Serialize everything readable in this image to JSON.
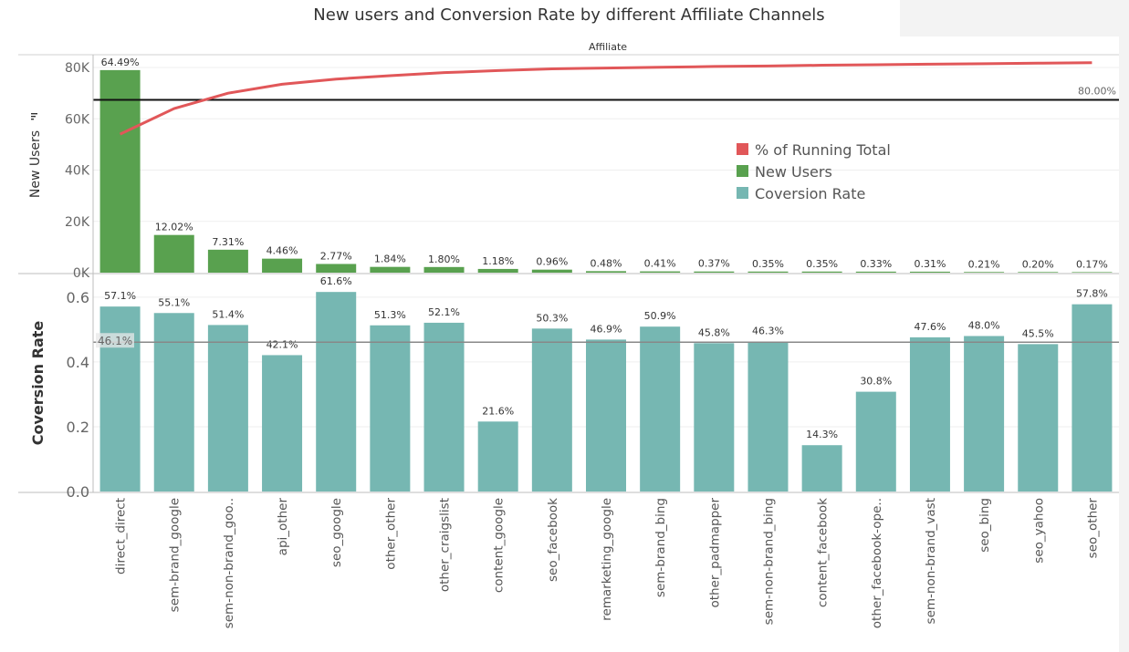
{
  "title": "New users and Conversion Rate by different Affiliate Channels",
  "header": "Affiliate",
  "colors": {
    "running_total": "#e15759",
    "new_users": "#59a14f",
    "conversion": "#76b7b2"
  },
  "chart_data": [
    {
      "type": "bar",
      "ylabel": "New Users",
      "ylim": [
        0,
        85000
      ],
      "yticks": [
        "0K",
        "20K",
        "40K",
        "60K",
        "80K"
      ],
      "ytick_values": [
        0,
        20000,
        40000,
        60000,
        80000
      ],
      "categories": [
        "direct_direct",
        "sem-brand_google",
        "sem-non-brand_goo..",
        "api_other",
        "seo_google",
        "other_other",
        "other_craigslist",
        "content_google",
        "seo_facebook",
        "remarketing_google",
        "sem-brand_bing",
        "other_padmapper",
        "sem-non-brand_bing",
        "content_facebook",
        "other_facebook-ope..",
        "sem-non-brand_vast",
        "seo_bing",
        "seo_yahoo",
        "seo_other"
      ],
      "series": [
        {
          "name": "New Users",
          "values": [
            79000,
            14700,
            8950,
            5460,
            3390,
            2250,
            2200,
            1450,
            1180,
            590,
            500,
            450,
            430,
            430,
            400,
            380,
            260,
            240,
            210
          ]
        },
        {
          "name": "% of Running Total",
          "values": [
            54000,
            64000,
            70000,
            73500,
            75500,
            76800,
            78000,
            78800,
            79500,
            79800,
            80100,
            80400,
            80600,
            80900,
            81100,
            81300,
            81500,
            81700,
            81900
          ]
        }
      ],
      "data_labels": [
        "64.49%",
        "12.02%",
        "7.31%",
        "4.46%",
        "2.77%",
        "1.84%",
        "1.80%",
        "1.18%",
        "0.96%",
        "0.48%",
        "0.41%",
        "0.37%",
        "0.35%",
        "0.35%",
        "0.33%",
        "0.31%",
        "0.21%",
        "0.20%",
        "0.17%"
      ],
      "reference_line": {
        "label": "80.00%",
        "value": 67400
      },
      "legend": [
        "% of Running Total",
        "New Users",
        "Coversion Rate"
      ],
      "legend_position": "right"
    },
    {
      "type": "bar",
      "ylabel": "Coversion Rate",
      "ylim": [
        0,
        0.67
      ],
      "yticks": [
        "0.0",
        "0.2",
        "0.4",
        "0.6"
      ],
      "ytick_values": [
        0,
        0.2,
        0.4,
        0.6
      ],
      "series": [
        {
          "name": "Coversion Rate",
          "values": [
            0.571,
            0.551,
            0.514,
            0.421,
            0.616,
            0.513,
            0.521,
            0.216,
            0.503,
            0.469,
            0.509,
            0.458,
            0.463,
            0.143,
            0.308,
            0.476,
            0.48,
            0.455,
            0.578
          ]
        }
      ],
      "data_labels": [
        "57.1%",
        "55.1%",
        "51.4%",
        "42.1%",
        "61.6%",
        "51.3%",
        "52.1%",
        "21.6%",
        "50.3%",
        "46.9%",
        "50.9%",
        "45.8%",
        "46.3%",
        "14.3%",
        "30.8%",
        "47.6%",
        "48.0%",
        "45.5%",
        "57.8%"
      ],
      "reference_line": {
        "label": "46.1%",
        "value": 0.461
      }
    }
  ]
}
